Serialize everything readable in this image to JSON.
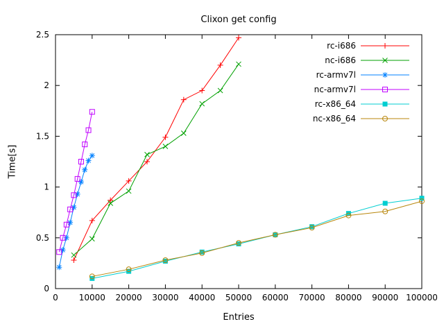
{
  "page": {
    "background": "#ffffff",
    "text_color": "#000000",
    "border_color": "#000000"
  },
  "chart_data": {
    "type": "line",
    "title": "Clixon get config",
    "xlabel": "Entries",
    "ylabel": "Time[s]",
    "xlim": [
      0,
      100000
    ],
    "ylim": [
      0,
      2.5
    ],
    "x_ticks": [
      0,
      10000,
      20000,
      30000,
      40000,
      50000,
      60000,
      70000,
      80000,
      90000,
      100000
    ],
    "y_ticks": [
      0,
      0.5,
      1,
      1.5,
      2,
      2.5
    ],
    "grid": false,
    "legend_position": "top-right-inside",
    "series": [
      {
        "name": "rc-i686",
        "color": "#ff0000",
        "marker": "plus",
        "x": [
          5000,
          10000,
          15000,
          20000,
          25000,
          30000,
          35000,
          40000,
          45000,
          50000
        ],
        "y": [
          0.28,
          0.67,
          0.87,
          1.06,
          1.25,
          1.49,
          1.86,
          1.95,
          2.2,
          2.47
        ]
      },
      {
        "name": "nc-i686",
        "color": "#00a000",
        "marker": "cross",
        "x": [
          5000,
          10000,
          15000,
          20000,
          25000,
          30000,
          35000,
          40000,
          45000,
          50000
        ],
        "y": [
          0.33,
          0.49,
          0.84,
          0.96,
          1.32,
          1.4,
          1.53,
          1.82,
          1.95,
          2.21
        ]
      },
      {
        "name": "rc-armv7l",
        "color": "#0080ff",
        "marker": "asterisk",
        "x": [
          1000,
          2000,
          3000,
          4000,
          5000,
          6000,
          7000,
          8000,
          9000,
          10000
        ],
        "y": [
          0.21,
          0.38,
          0.5,
          0.65,
          0.8,
          0.93,
          1.05,
          1.17,
          1.26,
          1.31
        ]
      },
      {
        "name": "nc-armv7l",
        "color": "#c000ff",
        "marker": "square-open",
        "x": [
          1000,
          2000,
          3000,
          4000,
          5000,
          6000,
          7000,
          8000,
          9000,
          10000
        ],
        "y": [
          0.36,
          0.5,
          0.63,
          0.78,
          0.92,
          1.08,
          1.25,
          1.42,
          1.56,
          1.74
        ]
      },
      {
        "name": "rc-x86_64",
        "color": "#00ced1",
        "marker": "square-filled",
        "x": [
          10000,
          20000,
          30000,
          40000,
          50000,
          60000,
          70000,
          80000,
          90000,
          100000
        ],
        "y": [
          0.1,
          0.17,
          0.27,
          0.36,
          0.44,
          0.53,
          0.61,
          0.74,
          0.84,
          0.89
        ]
      },
      {
        "name": "nc-x86_64",
        "color": "#b8860b",
        "marker": "circle-open",
        "x": [
          10000,
          20000,
          30000,
          40000,
          50000,
          60000,
          70000,
          80000,
          90000,
          100000
        ],
        "y": [
          0.12,
          0.19,
          0.28,
          0.35,
          0.45,
          0.53,
          0.6,
          0.72,
          0.76,
          0.86
        ]
      }
    ]
  }
}
